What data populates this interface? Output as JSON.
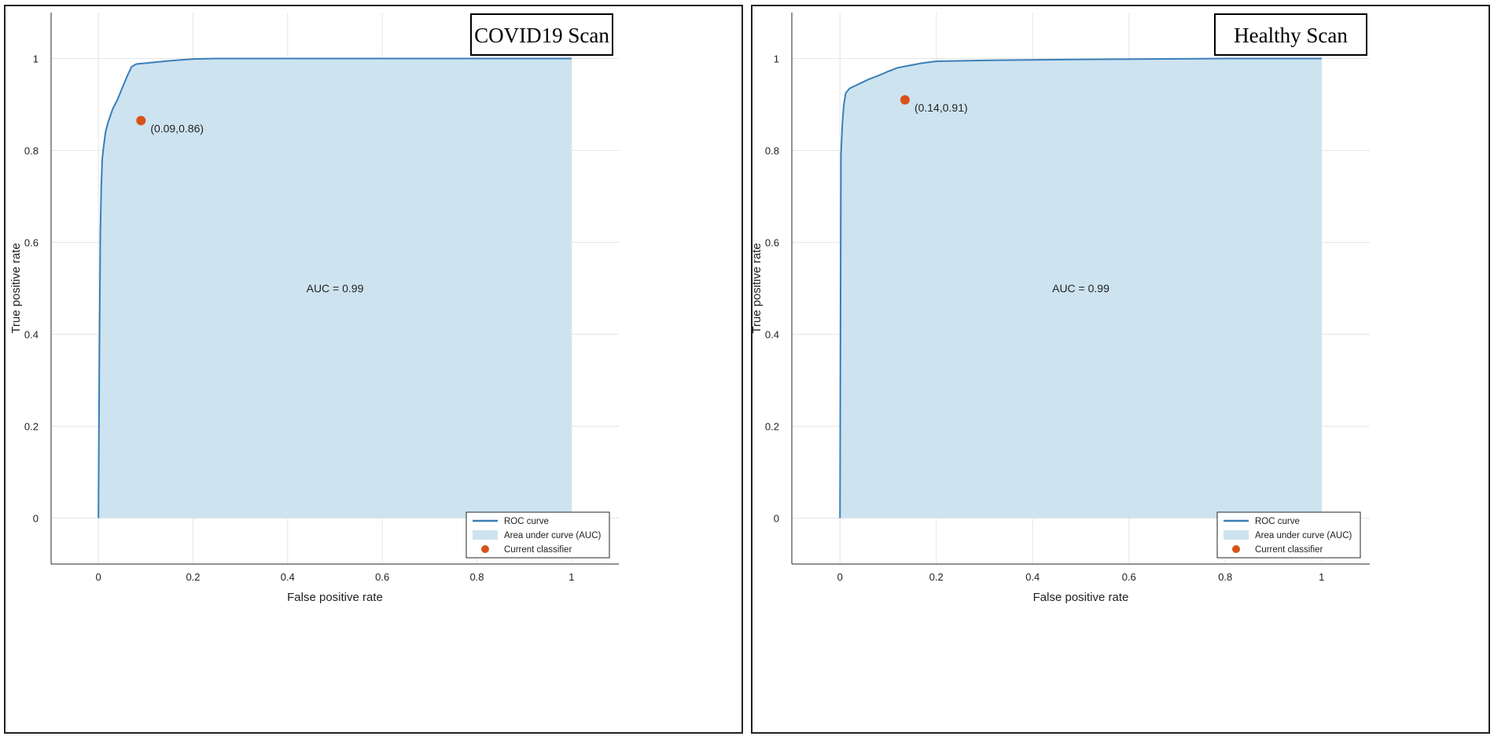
{
  "chart_data": [
    {
      "type": "line",
      "title": "COVID19 Scan",
      "xlabel": "False positive rate",
      "ylabel": "True positive rate",
      "xlim": [
        -0.1,
        1.1
      ],
      "ylim": [
        -0.1,
        1.1
      ],
      "xticks": [
        "0",
        "0.2",
        "0.4",
        "0.6",
        "0.8",
        "1"
      ],
      "yticks": [
        "0",
        "0.2",
        "0.4",
        "0.6",
        "0.8",
        "1"
      ],
      "grid": true,
      "auc_text": "AUC = 0.99",
      "series": [
        {
          "name": "ROC curve",
          "color": "#3a7fb8",
          "x": [
            0,
            0.002,
            0.004,
            0.006,
            0.008,
            0.01,
            0.015,
            0.02,
            0.025,
            0.03,
            0.04,
            0.05,
            0.06,
            0.07,
            0.08,
            0.1,
            0.15,
            0.2,
            0.25,
            1
          ],
          "y": [
            0,
            0.35,
            0.62,
            0.72,
            0.78,
            0.8,
            0.84,
            0.86,
            0.875,
            0.89,
            0.91,
            0.935,
            0.96,
            0.982,
            0.988,
            0.99,
            0.995,
            0.999,
            1,
            1
          ]
        },
        {
          "name": "Area under curve (AUC)",
          "color": "#cde3f0"
        },
        {
          "name": "Current classifier",
          "color": "#d95319",
          "x": [
            0.09
          ],
          "y": [
            0.865
          ],
          "label": "(0.09,0.86)"
        }
      ],
      "legend_position": "bottom-right"
    },
    {
      "type": "line",
      "title": "Healthy Scan",
      "xlabel": "False positive rate",
      "ylabel": "True positive rate",
      "xlim": [
        -0.1,
        1.1
      ],
      "ylim": [
        -0.1,
        1.1
      ],
      "xticks": [
        "0",
        "0.2",
        "0.4",
        "0.6",
        "0.8",
        "1"
      ],
      "yticks": [
        "0",
        "0.2",
        "0.4",
        "0.6",
        "0.8",
        "1"
      ],
      "grid": true,
      "auc_text": "AUC = 0.99",
      "series": [
        {
          "name": "ROC curve",
          "color": "#3a7fb8",
          "x": [
            0,
            0.002,
            0.005,
            0.008,
            0.012,
            0.02,
            0.04,
            0.06,
            0.08,
            0.1,
            0.12,
            0.14,
            0.17,
            0.2,
            0.3,
            0.5,
            0.8,
            1
          ],
          "y": [
            0,
            0.79,
            0.86,
            0.9,
            0.925,
            0.935,
            0.945,
            0.955,
            0.963,
            0.972,
            0.98,
            0.984,
            0.99,
            0.994,
            0.996,
            0.998,
            1,
            1
          ]
        },
        {
          "name": "Area under curve (AUC)",
          "color": "#cde3f0"
        },
        {
          "name": "Current classifier",
          "color": "#d95319",
          "x": [
            0.135
          ],
          "y": [
            0.91
          ],
          "label": "(0.14,0.91)"
        }
      ],
      "legend_position": "bottom-right"
    }
  ]
}
